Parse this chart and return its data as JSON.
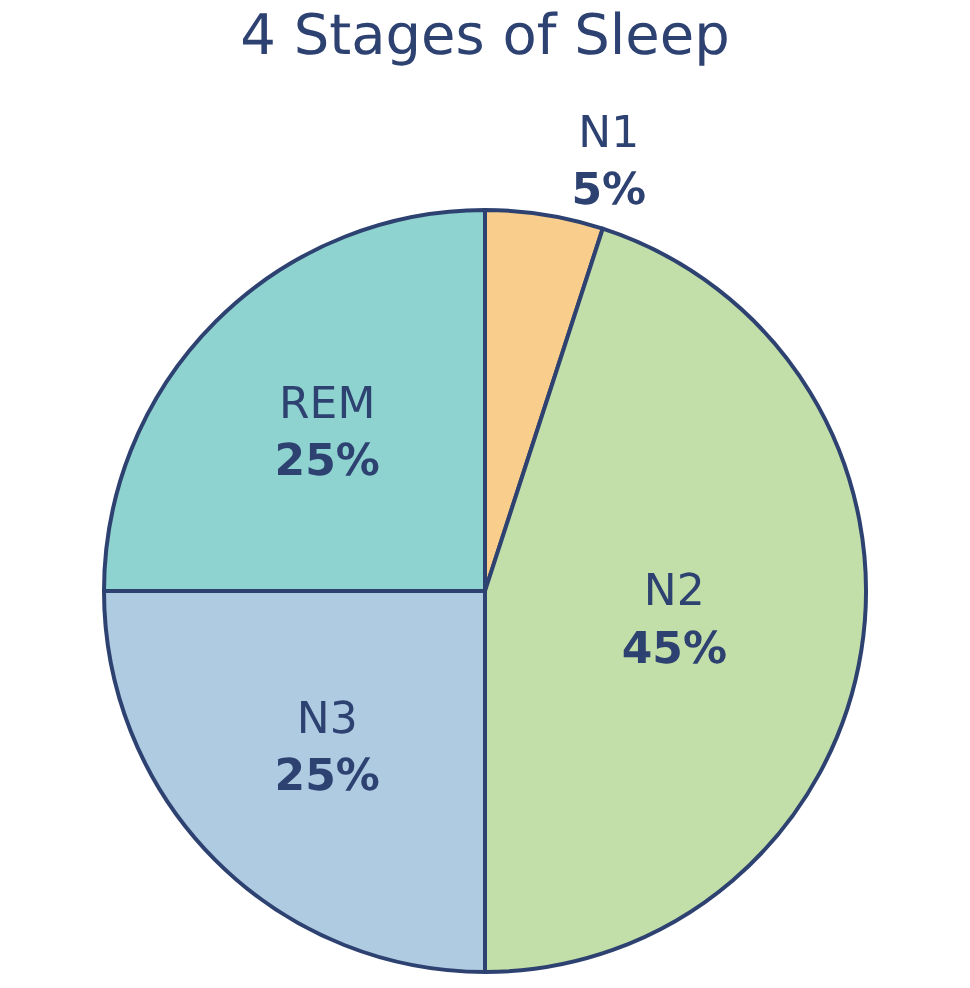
{
  "chart_data": {
    "type": "pie",
    "title": "4 Stages of Sleep",
    "categories": [
      "N1",
      "N2",
      "N3",
      "REM"
    ],
    "values": [
      5,
      45,
      25,
      25
    ],
    "value_labels": [
      "5%",
      "45%",
      "25%",
      "25%"
    ],
    "colors": [
      "#f9cd8b",
      "#c3dfa9",
      "#afcbe2",
      "#8ed3cf"
    ],
    "legend": false
  }
}
